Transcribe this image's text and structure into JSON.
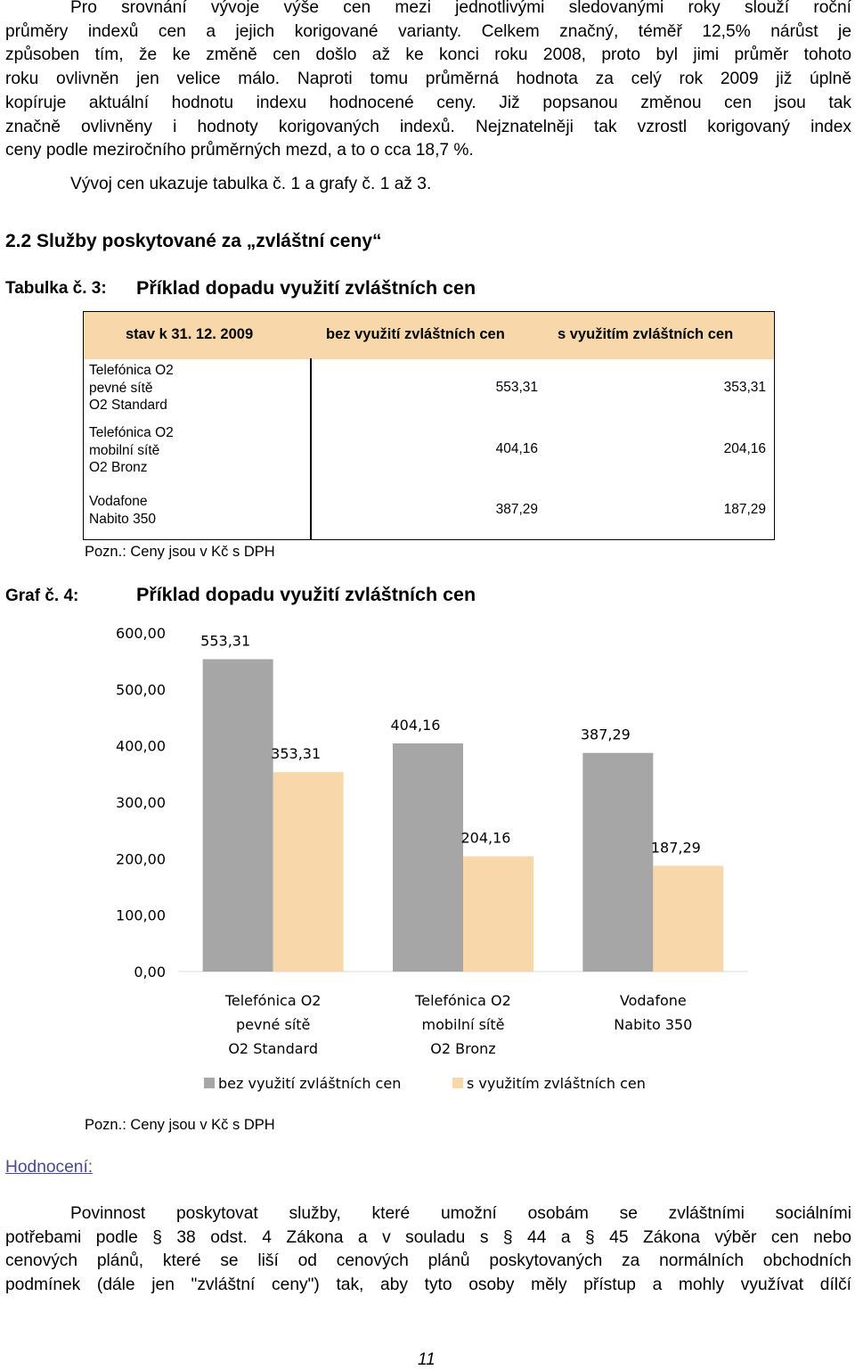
{
  "intro_paragraph": {
    "lines": [
      "Pro srovnání vývoje výše cen mezi jednotlivými sledovanými roky slouží roční",
      "průměry indexů cen a jejich korigované varianty. Celkem značný, téměř 12,5% nárůst je",
      "způsoben tím, že ke změně cen došlo až ke konci roku 2008, proto byl jimi průměr tohoto",
      "roku ovlivněn jen velice málo. Naproti tomu průměrná hodnota za celý rok 2009 již úplně",
      "kopíruje aktuální hodnotu indexu hodnocené ceny. Již popsanou změnou cen jsou tak",
      "značně ovlivněny i hodnoty korigovaných indexů. Nejznatelněji tak vzrostl korigovaný index",
      "ceny podle meziročního průměrných mezd, a to o cca 18,7 %."
    ],
    "reference_line": "Vývoj cen ukazuje tabulka č. 1 a grafy č. 1 až 3."
  },
  "section_heading": "2.2 Služby poskytované za „zvláštní ceny“",
  "table": {
    "caption_label": "Tabulka č. 3:",
    "caption_title": "Příklad dopadu využití zvláštních cen",
    "headers": [
      "stav k 31. 12. 2009",
      "bez využití zvláštních cen",
      "s využitím zvláštních cen"
    ],
    "rows": [
      {
        "name_lines": [
          "Telefónica O2",
          "pevné sítě",
          "O2 Standard"
        ],
        "without": "553,31",
        "with": "353,31"
      },
      {
        "name_lines": [
          "Telefónica O2",
          "mobilní sítě",
          "O2 Bronz"
        ],
        "without": "404,16",
        "with": "204,16"
      },
      {
        "name_lines": [
          "Vodafone",
          "Nabito 350"
        ],
        "without": "387,29",
        "with": "187,29"
      }
    ],
    "note": "Pozn.: Ceny jsou v Kč s DPH"
  },
  "graph_caption": {
    "label": "Graf č. 4:",
    "title": "Příklad dopadu využití zvláštních cen"
  },
  "chart_data": {
    "type": "bar",
    "title": "",
    "xlabel": "",
    "ylabel": "",
    "categories": [
      [
        "Telefónica O2",
        "pevné sítě",
        "O2 Standard"
      ],
      [
        "Telefónica O2",
        "mobilní sítě",
        "O2 Bronz"
      ],
      [
        "Vodafone",
        "Nabito 350"
      ]
    ],
    "series": [
      {
        "name": "bez využití zvláštních cen",
        "values": [
          553.31,
          404.16,
          387.29
        ],
        "labels": [
          "553,31",
          "404,16",
          "387,29"
        ],
        "color": "#a6a6a6"
      },
      {
        "name": "s využitím zvláštních cen",
        "values": [
          353.31,
          204.16,
          187.29
        ],
        "labels": [
          "353,31",
          "204,16",
          "187,29"
        ],
        "color": "#f8d7ab"
      }
    ],
    "ylim": [
      0,
      600
    ],
    "y_ticks": [
      "0,00",
      "100,00",
      "200,00",
      "300,00",
      "400,00",
      "500,00",
      "600,00"
    ],
    "grid": false,
    "legend_position": "bottom"
  },
  "chart_note": "Pozn.: Ceny jsou v Kč s DPH",
  "evaluation_heading": "Hodnocení:",
  "evaluation_paragraph": {
    "lines": [
      "Povinnost poskytovat služby, které umožní osobám se zvláštními sociálními",
      "potřebami podle § 38 odst. 4 Zákona a v souladu s § 44 a § 45 Zákona výběr cen nebo",
      "cenových plánů, které se liší od cenových plánů poskytovaných za normálních obchodních",
      "podmínek (dále jen \"zvláštní ceny\") tak, aby tyto osoby měly přístup a mohly využívat dílčí"
    ]
  },
  "page_number": "11"
}
